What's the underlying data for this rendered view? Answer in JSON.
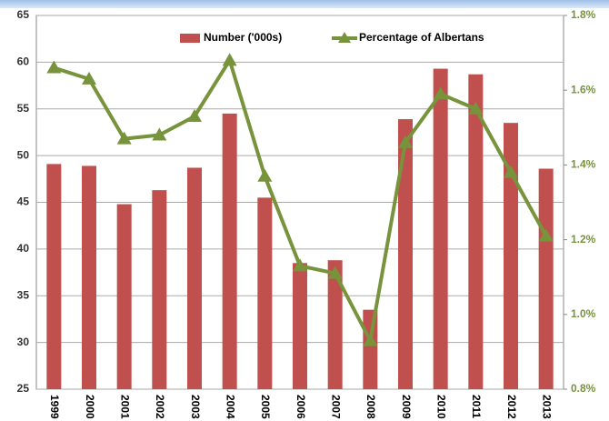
{
  "chart_data": {
    "type": "bar-line",
    "categories": [
      "1999",
      "2000",
      "2001",
      "2002",
      "2003",
      "2004",
      "2005",
      "2006",
      "2007",
      "2008",
      "2009",
      "2010",
      "2011",
      "2012",
      "2013"
    ],
    "series": [
      {
        "name": "Number ('000s)",
        "color": "#c0504d",
        "type": "bar",
        "values": [
          49.1,
          48.9,
          44.8,
          46.3,
          48.7,
          54.5,
          45.5,
          38.5,
          38.8,
          33.5,
          53.9,
          59.3,
          58.7,
          53.5,
          48.6
        ]
      },
      {
        "name": "Percentage of Albertans",
        "color": "#77933c",
        "type": "line",
        "axis": "y2",
        "values": [
          1.66,
          1.63,
          1.47,
          1.48,
          1.53,
          1.68,
          1.37,
          1.13,
          1.11,
          0.93,
          1.46,
          1.59,
          1.55,
          1.38,
          1.21
        ]
      }
    ],
    "ylim": [
      25,
      65
    ],
    "yticks": [
      25,
      30,
      35,
      40,
      45,
      50,
      55,
      60,
      65
    ],
    "y2lim": [
      0.8,
      1.8
    ],
    "y2ticks": [
      {
        "value": 0.8,
        "label": "0.8%"
      },
      {
        "value": 1.0,
        "label": "1.0%"
      },
      {
        "value": 1.2,
        "label": "1.2%"
      },
      {
        "value": 1.4,
        "label": "1.4%"
      },
      {
        "value": 1.6,
        "label": "1.6%"
      },
      {
        "value": 1.8,
        "label": "1.8%"
      }
    ],
    "grid": true,
    "legend": "top"
  }
}
